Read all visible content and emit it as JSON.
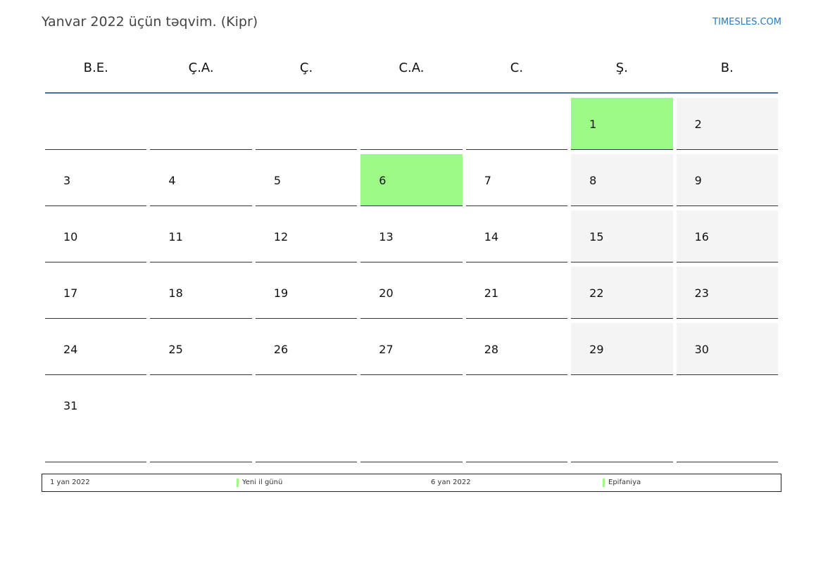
{
  "title": "Yanvar 2022 üçün təqvim. (Kipr)",
  "brand": "TIMESLES.COM",
  "colors": {
    "holiday": "#9cfb84",
    "weekend": "#f4f4f4",
    "header_line": "#4a6d9a",
    "brand": "#2a7bc0"
  },
  "weekdays": [
    "B.E.",
    "Ç.A.",
    "Ç.",
    "C.A.",
    "C.",
    "Ş.",
    "B."
  ],
  "weeks": [
    [
      {
        "d": ""
      },
      {
        "d": ""
      },
      {
        "d": ""
      },
      {
        "d": ""
      },
      {
        "d": ""
      },
      {
        "d": "1",
        "h": true
      },
      {
        "d": "2",
        "w": true
      }
    ],
    [
      {
        "d": "3"
      },
      {
        "d": "4"
      },
      {
        "d": "5"
      },
      {
        "d": "6",
        "h": true
      },
      {
        "d": "7"
      },
      {
        "d": "8",
        "w": true
      },
      {
        "d": "9",
        "w": true
      }
    ],
    [
      {
        "d": "10"
      },
      {
        "d": "11"
      },
      {
        "d": "12"
      },
      {
        "d": "13"
      },
      {
        "d": "14"
      },
      {
        "d": "15",
        "w": true
      },
      {
        "d": "16",
        "w": true
      }
    ],
    [
      {
        "d": "17"
      },
      {
        "d": "18"
      },
      {
        "d": "19"
      },
      {
        "d": "20"
      },
      {
        "d": "21"
      },
      {
        "d": "22",
        "w": true
      },
      {
        "d": "23",
        "w": true
      }
    ],
    [
      {
        "d": "24"
      },
      {
        "d": "25"
      },
      {
        "d": "26"
      },
      {
        "d": "27"
      },
      {
        "d": "28"
      },
      {
        "d": "29",
        "w": true
      },
      {
        "d": "30",
        "w": true
      }
    ],
    [
      {
        "d": "31"
      },
      {
        "d": ""
      },
      {
        "d": ""
      },
      {
        "d": ""
      },
      {
        "d": ""
      },
      {
        "d": ""
      },
      {
        "d": ""
      }
    ]
  ],
  "holidays": [
    {
      "date": "1 yan 2022",
      "name": "Yeni il günü"
    },
    {
      "date": "6 yan 2022",
      "name": "Epifaniya"
    }
  ]
}
